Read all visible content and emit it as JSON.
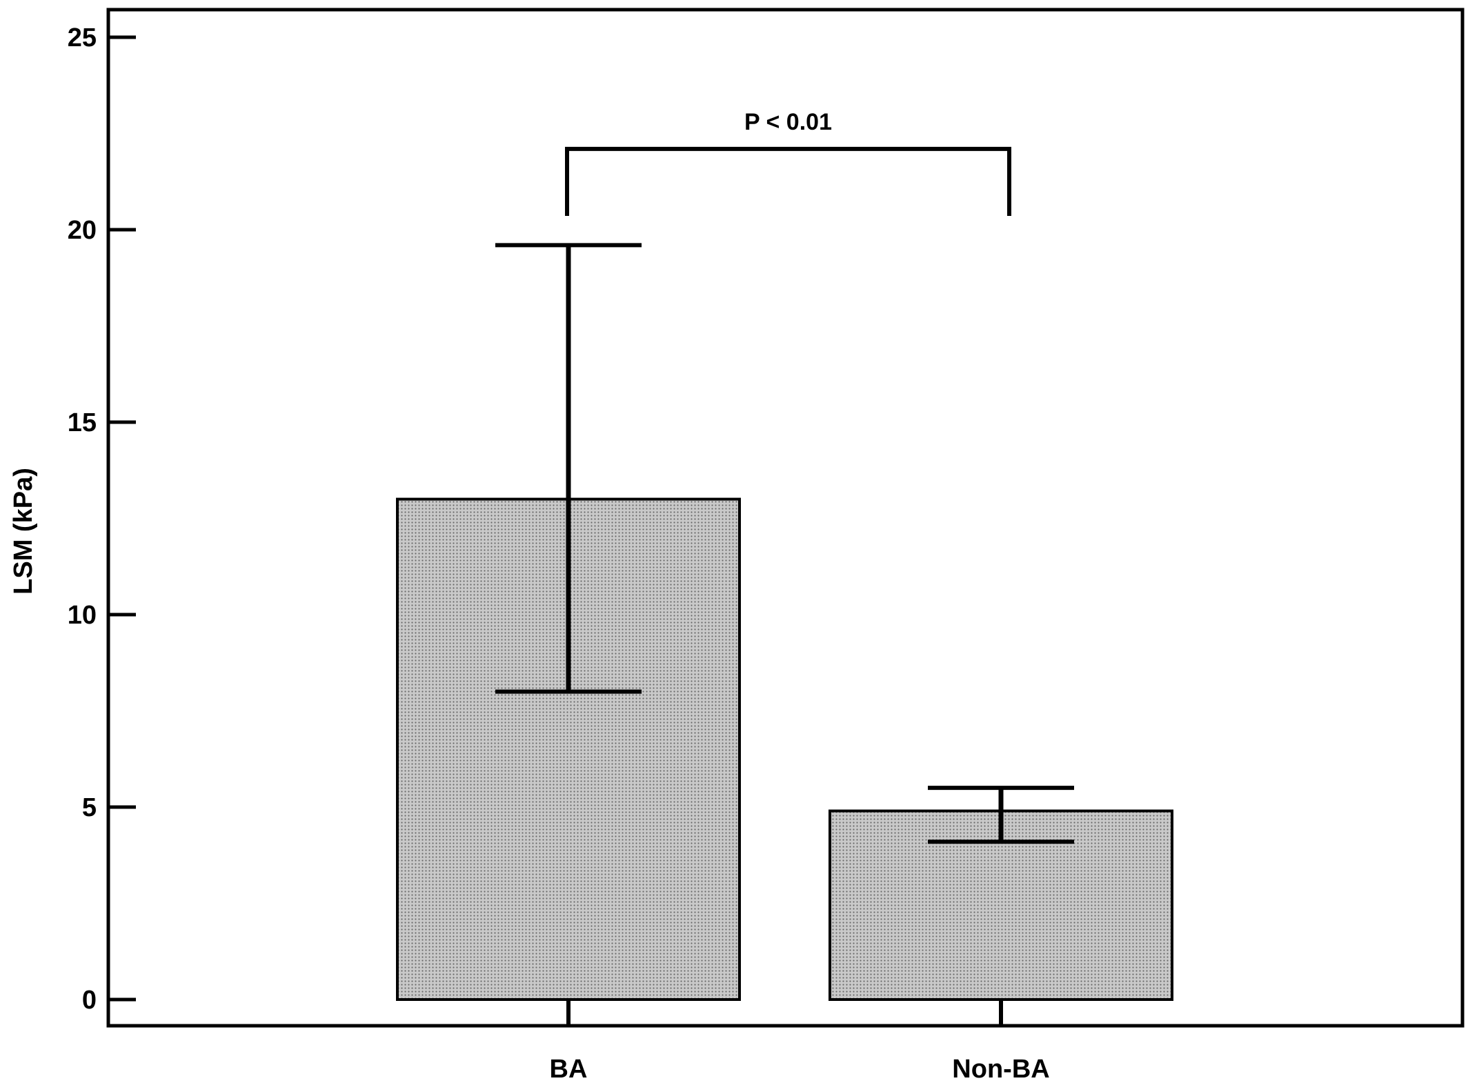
{
  "chart_data": {
    "type": "bar",
    "title": "",
    "xlabel": "",
    "ylabel": "LSM (kPa)",
    "ylim": [
      0,
      25
    ],
    "yticks": [
      0,
      5,
      10,
      15,
      20,
      25
    ],
    "categories": [
      "BA",
      "Non-BA"
    ],
    "values": [
      13.0,
      4.9
    ],
    "error_upper": [
      19.6,
      5.5
    ],
    "error_lower": [
      8.0,
      4.1
    ],
    "significance": {
      "between": [
        "BA",
        "Non-BA"
      ],
      "label": "P < 0.01",
      "level": 22.1
    },
    "grid": false,
    "legend": "none"
  },
  "colors": {
    "bar_fill": "#c9c9c9",
    "bar_dots": "#6a6a6a",
    "axis": "#000000"
  }
}
